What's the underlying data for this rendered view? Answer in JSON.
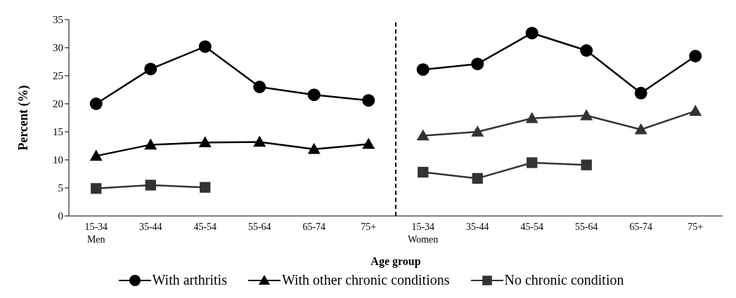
{
  "chart_data": {
    "type": "line",
    "xlabel": "Age group",
    "ylabel": "Percent (%)",
    "categories": [
      "15-34\nMen",
      "35-44",
      "45-54",
      "55-64",
      "65-74",
      "75+",
      "15-34\nWomen",
      "35-44",
      "45-54",
      "55-64",
      "65-74",
      "75+"
    ],
    "ylim": [
      0,
      35
    ],
    "yticks": [
      0,
      5,
      10,
      15,
      20,
      25,
      30,
      35
    ],
    "grid": false,
    "legend": "bottom",
    "line_style": "solid",
    "series": [
      {
        "name": "With arthritis",
        "color": "#000000",
        "marker": "circle",
        "values": [
          20.0,
          26.2,
          30.2,
          23.0,
          21.6,
          20.6,
          null,
          null,
          null,
          null,
          null,
          null
        ]
      },
      {
        "name": "With other chronic conditions",
        "color": "#000000",
        "marker": "triangle",
        "values": [
          10.7,
          12.7,
          13.1,
          13.2,
          11.9,
          12.8,
          null,
          null,
          null,
          null,
          null,
          null
        ]
      },
      {
        "name": "No chronic condition",
        "color": "#333333",
        "marker": "square",
        "values": [
          4.9,
          5.5,
          5.1,
          null,
          null,
          null,
          null,
          null,
          null,
          null,
          null,
          null
        ]
      },
      {
        "color": "#000000",
        "marker": "circle",
        "values": [
          null,
          null,
          null,
          null,
          null,
          null,
          26.1,
          27.1,
          32.6,
          29.5,
          21.9,
          28.5
        ]
      },
      {
        "color": "#333333",
        "marker": "triangle",
        "values": [
          null,
          null,
          null,
          null,
          null,
          null,
          14.3,
          15.0,
          17.4,
          17.9,
          15.4,
          18.7
        ]
      },
      {
        "color": "#333333",
        "marker": "square",
        "values": [
          null,
          null,
          null,
          null,
          null,
          null,
          7.8,
          6.7,
          9.5,
          9.1,
          null,
          null
        ]
      }
    ]
  }
}
